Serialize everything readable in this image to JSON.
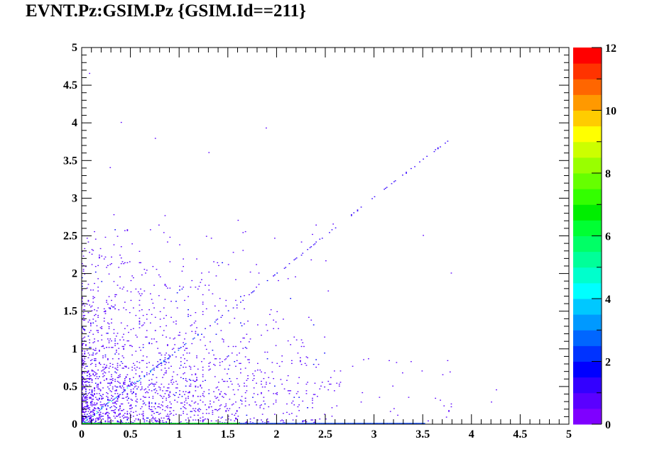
{
  "title": "EVNT.Pz:GSIM.Pz {GSIM.Id==211}",
  "chart_data": {
    "type": "heatmap",
    "title": "EVNT.Pz:GSIM.Pz {GSIM.Id==211}",
    "xlabel": "",
    "ylabel": "",
    "xlim": [
      0,
      5
    ],
    "ylim": [
      0,
      5
    ],
    "zlim": [
      0,
      12
    ],
    "x_ticks": [
      "0",
      "0.5",
      "1",
      "1.5",
      "2",
      "2.5",
      "3",
      "3.5",
      "4",
      "4.5",
      "5"
    ],
    "y_ticks": [
      "0",
      "0.5",
      "1",
      "1.5",
      "2",
      "2.5",
      "3",
      "3.5",
      "4",
      "4.5",
      "5"
    ],
    "z_ticks": [
      "0",
      "2",
      "4",
      "6",
      "8",
      "10",
      "12"
    ],
    "grid": false,
    "palette": [
      "#7f00ff",
      "#5a00ff",
      "#3300ff",
      "#0000ff",
      "#0033ff",
      "#0066ff",
      "#0099ff",
      "#00c8ff",
      "#00ffff",
      "#00ffcc",
      "#00ff99",
      "#00ff66",
      "#00ff33",
      "#00ee00",
      "#33ff00",
      "#66ff00",
      "#99ff00",
      "#ccff00",
      "#ffff00",
      "#ffcc00",
      "#ff9900",
      "#ff6600",
      "#ff3300",
      "#ff0000"
    ],
    "features": {
      "diagonal_band": {
        "from": [
          0.0,
          0.0
        ],
        "to": [
          3.8,
          3.8
        ],
        "peak_counts_near": [
          0.1,
          0.1
        ]
      },
      "scatter_cloud": {
        "x_range": [
          0,
          2.5
        ],
        "y_range": [
          0,
          2.7
        ],
        "densest_near": [
          0.4,
          0.3
        ]
      },
      "zero_row": {
        "y": 0.0,
        "x_range": [
          0,
          3.5
        ],
        "counts": 8
      }
    },
    "notable_points": [
      {
        "x": 0.4,
        "y": 4.0
      },
      {
        "x": 1.9,
        "y": 3.93
      },
      {
        "x": 0.75,
        "y": 3.8
      },
      {
        "x": 0.3,
        "y": 3.4
      },
      {
        "x": 3.5,
        "y": 2.5
      },
      {
        "x": 3.8,
        "y": 2.0
      },
      {
        "x": 4.25,
        "y": 0.45
      },
      {
        "x": 4.2,
        "y": 0.3
      },
      {
        "x": 3.7,
        "y": 0.65
      },
      {
        "x": 0.08,
        "y": 4.65
      },
      {
        "x": 1.3,
        "y": 3.6
      }
    ]
  }
}
